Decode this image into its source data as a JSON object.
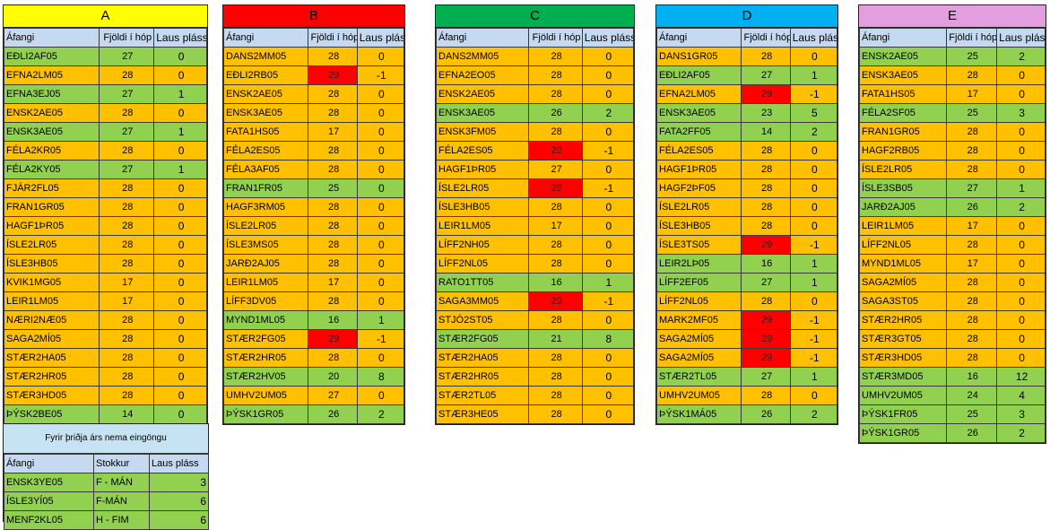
{
  "headers": {
    "course": "Áfangi",
    "group": "Fjöldi í hóp",
    "free": "Laus pláss"
  },
  "colors": {
    "full": "#ffc000",
    "open": "#92d050",
    "over": "#ff0000",
    "header": "#c5d9f1"
  },
  "blocks": [
    {
      "title": "A",
      "color": "#ffff00",
      "rows": [
        [
          "EÐLI2AF05",
          "27",
          "0",
          "gr"
        ],
        [
          "EFNA2LM05",
          "28",
          "0",
          "or"
        ],
        [
          "EFNA3EJ05",
          "27",
          "1",
          "gr"
        ],
        [
          "ENSK2AE05",
          "28",
          "0",
          "or"
        ],
        [
          "ENSK3AE05",
          "27",
          "1",
          "gr"
        ],
        [
          "FÉLA2KR05",
          "28",
          "0",
          "or"
        ],
        [
          "FÉLA2KY05",
          "27",
          "1",
          "gr"
        ],
        [
          "FJÁR2FL05",
          "28",
          "0",
          "or"
        ],
        [
          "FRAN1GR05",
          "28",
          "0",
          "or"
        ],
        [
          "HAGF1ÞR05",
          "28",
          "0",
          "or"
        ],
        [
          "ÍSLE2LR05",
          "28",
          "0",
          "or"
        ],
        [
          "ÍSLE3HB05",
          "28",
          "0",
          "or"
        ],
        [
          "KVIK1MG05",
          "17",
          "0",
          "or"
        ],
        [
          "LEIR1LM05",
          "17",
          "0",
          "or"
        ],
        [
          "NÆRI2NÆ05",
          "28",
          "0",
          "or"
        ],
        [
          "SAGA2MÍ05",
          "28",
          "0",
          "or"
        ],
        [
          "STÆR2HA05",
          "28",
          "0",
          "or"
        ],
        [
          "STÆR2HR05",
          "28",
          "0",
          "or"
        ],
        [
          "STÆR3HD05",
          "28",
          "0",
          "or"
        ],
        [
          "ÞÝSK2BE05",
          "14",
          "0",
          "gr"
        ]
      ]
    },
    {
      "title": "B",
      "color": "#ff0000",
      "rows": [
        [
          "DANS2MM05",
          "28",
          "0",
          "or"
        ],
        [
          "EÐLI2RB05",
          "29",
          "-1",
          "rd"
        ],
        [
          "ENSK2AE05",
          "28",
          "0",
          "or"
        ],
        [
          "ENSK3AE05",
          "28",
          "0",
          "or"
        ],
        [
          "FATA1HS05",
          "17",
          "0",
          "or"
        ],
        [
          "FÉLA2ES05",
          "28",
          "0",
          "or"
        ],
        [
          "FÉLA3AF05",
          "28",
          "0",
          "or"
        ],
        [
          "FRAN1FR05",
          "25",
          "0",
          "gr"
        ],
        [
          "HAGF3RM05",
          "28",
          "0",
          "or"
        ],
        [
          "ÍSLE2LR05",
          "28",
          "0",
          "or"
        ],
        [
          "ÍSLE3MS05",
          "28",
          "0",
          "or"
        ],
        [
          "JARÐ2AJ05",
          "28",
          "0",
          "or"
        ],
        [
          "LEIR1LM05",
          "17",
          "0",
          "or"
        ],
        [
          "LÍFF3DV05",
          "28",
          "0",
          "or"
        ],
        [
          "MYND1ML05",
          "16",
          "1",
          "gr"
        ],
        [
          "STÆR2FG05",
          "29",
          "-1",
          "rd"
        ],
        [
          "STÆR2HR05",
          "28",
          "0",
          "or"
        ],
        [
          "STÆR2HV05",
          "20",
          "8",
          "gr"
        ],
        [
          "UMHV2UM05",
          "27",
          "0",
          "or"
        ],
        [
          "ÞÝSK1GR05",
          "26",
          "2",
          "gr"
        ]
      ]
    },
    {
      "title": "C",
      "color": "#00b050",
      "rows": [
        [
          "DANS2MM05",
          "28",
          "0",
          "or"
        ],
        [
          "EFNA2EO05",
          "28",
          "0",
          "or"
        ],
        [
          "ENSK2AE05",
          "28",
          "0",
          "or"
        ],
        [
          "ENSK3AE05",
          "26",
          "2",
          "gr"
        ],
        [
          "ENSK3FM05",
          "28",
          "0",
          "or"
        ],
        [
          "FÉLA2ES05",
          "29",
          "-1",
          "rd"
        ],
        [
          "HAGF1ÞR05",
          "27",
          "0",
          "or"
        ],
        [
          "ÍSLE2LR05",
          "29",
          "-1",
          "rd"
        ],
        [
          "ÍSLE3HB05",
          "28",
          "0",
          "or"
        ],
        [
          "LEIR1LM05",
          "17",
          "0",
          "or"
        ],
        [
          "LÍFF2NH05",
          "28",
          "0",
          "or"
        ],
        [
          "LÍFF2NL05",
          "28",
          "0",
          "or"
        ],
        [
          "RATO1TT05",
          "16",
          "1",
          "gr"
        ],
        [
          "SAGA3MM05",
          "29",
          "-1",
          "rd"
        ],
        [
          "STJÓ2ST05",
          "28",
          "0",
          "or"
        ],
        [
          "STÆR2FG05",
          "21",
          "8",
          "gr"
        ],
        [
          "STÆR2HA05",
          "28",
          "0",
          "or"
        ],
        [
          "STÆR2HR05",
          "28",
          "0",
          "or"
        ],
        [
          "STÆR2TL05",
          "28",
          "0",
          "or"
        ],
        [
          "STÆR3HE05",
          "28",
          "0",
          "or"
        ]
      ]
    },
    {
      "title": "D",
      "color": "#00b0f0",
      "rows": [
        [
          "DANS1GR05",
          "28",
          "0",
          "or"
        ],
        [
          "EÐLI2AF05",
          "27",
          "1",
          "gr"
        ],
        [
          "EFNA2LM05",
          "29",
          "-1",
          "rd"
        ],
        [
          "ENSK3AE05",
          "23",
          "5",
          "gr"
        ],
        [
          "FATA2FF05",
          "14",
          "2",
          "gr"
        ],
        [
          "FÉLA2ES05",
          "28",
          "0",
          "or"
        ],
        [
          "HAGF1ÞR05",
          "28",
          "0",
          "or"
        ],
        [
          "HAGF2ÞF05",
          "28",
          "0",
          "or"
        ],
        [
          "ÍSLE2LR05",
          "28",
          "0",
          "or"
        ],
        [
          "ÍSLE3HB05",
          "28",
          "0",
          "or"
        ],
        [
          "ÍSLE3TS05",
          "29",
          "-1",
          "rd"
        ],
        [
          "LEIR2LÞ05",
          "16",
          "1",
          "gr"
        ],
        [
          "LÍFF2EF05",
          "27",
          "1",
          "gr"
        ],
        [
          "LÍFF2NL05",
          "28",
          "0",
          "or"
        ],
        [
          "MARK2MF05",
          "29",
          "-1",
          "rd"
        ],
        [
          "SAGA2MÍ05",
          "29",
          "-1",
          "rd"
        ],
        [
          "SAGA2MÍ05",
          "29",
          "-1",
          "rd"
        ],
        [
          "STÆR2TL05",
          "27",
          "1",
          "gr"
        ],
        [
          "UMHV2UM05",
          "28",
          "0",
          "or"
        ],
        [
          "ÞÝSK1MÁ05",
          "26",
          "2",
          "gr"
        ]
      ]
    },
    {
      "title": "E",
      "color": "#e39ee0",
      "rows": [
        [
          "ENSK2AE05",
          "25",
          "2",
          "gr"
        ],
        [
          "ENSK3AE05",
          "28",
          "0",
          "or"
        ],
        [
          "FATA1HS05",
          "17",
          "0",
          "or"
        ],
        [
          "FÉLA2SF05",
          "25",
          "3",
          "gr"
        ],
        [
          "FRAN1GR05",
          "28",
          "0",
          "or"
        ],
        [
          "HAGF2RB05",
          "28",
          "0",
          "or"
        ],
        [
          "ÍSLE2LR05",
          "28",
          "0",
          "or"
        ],
        [
          "ÍSLE3SB05",
          "27",
          "1",
          "gr"
        ],
        [
          "JARÐ2AJ05",
          "26",
          "2",
          "gr"
        ],
        [
          "LEIR1LM05",
          "17",
          "0",
          "or"
        ],
        [
          "LÍFF2NL05",
          "28",
          "0",
          "or"
        ],
        [
          "MYND1ML05",
          "17",
          "0",
          "or"
        ],
        [
          "SAGA2MÍ05",
          "28",
          "0",
          "or"
        ],
        [
          "SAGA3ST05",
          "28",
          "0",
          "or"
        ],
        [
          "STÆR2HR05",
          "28",
          "0",
          "or"
        ],
        [
          "STÆR3GT05",
          "28",
          "0",
          "or"
        ],
        [
          "STÆR3HD05",
          "28",
          "0",
          "or"
        ],
        [
          "STÆR3MD05",
          "16",
          "12",
          "gr"
        ],
        [
          "UMHV2UM05",
          "24",
          "4",
          "gr"
        ],
        [
          "ÞÝSK1FR05",
          "25",
          "3",
          "gr"
        ],
        [
          "ÞÝSK1GR05",
          "26",
          "2",
          "gr"
        ]
      ]
    }
  ],
  "note": {
    "title": "Fyrir þriðja árs nema eingöngu",
    "headers": {
      "course": "Áfangi",
      "slot": "Stokkur",
      "free": "Laus pláss"
    },
    "rows": [
      [
        "ENSK3YE05",
        "F - MÁN",
        "3"
      ],
      [
        "ÍSLE3YÍ05",
        "F-MÁN",
        "6"
      ],
      [
        "MENF2KL05",
        "H - FIM",
        "6"
      ]
    ]
  }
}
